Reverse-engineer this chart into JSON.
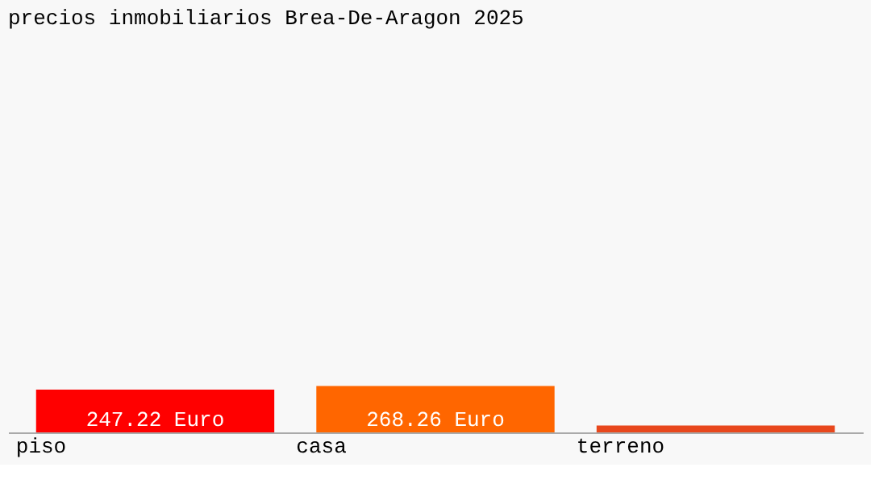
{
  "chart_data": {
    "type": "bar",
    "title": "precios inmobiliarios Brea-De-Aragon 2025",
    "categories": [
      "piso",
      "casa",
      "terreno"
    ],
    "values": [
      247.22,
      268.26,
      40
    ],
    "colors": [
      "#ff0000",
      "#ff6600",
      "#e8471c"
    ],
    "value_labels": [
      "247.22 Euro",
      "268.26 Euro",
      null
    ],
    "grid": false,
    "legend": false
  }
}
